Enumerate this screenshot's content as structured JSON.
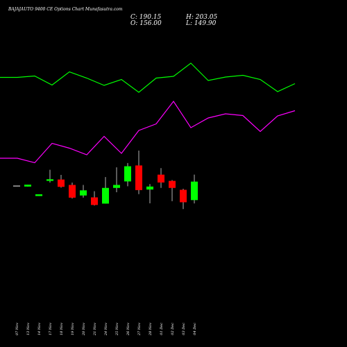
{
  "header": {
    "title": "BAJAJAUTO 9400  CE Options  Chart Munafasutra.com",
    "close": "C: 190.15",
    "open": "O: 156.00",
    "high": "H: 203.05",
    "low": "L: 149.90"
  },
  "chart_data": {
    "type": "candlestick",
    "title": "BAJAJAUTO 9400  CE Options  Chart Munafasutra.com",
    "dates": [
      "07 Nov",
      "13 Nov",
      "14 Nov",
      "17 Nov",
      "18 Nov",
      "19 Nov",
      "20 Nov",
      "21 Nov",
      "24 Nov",
      "25 Nov",
      "26 Nov",
      "27 Nov",
      "28 Nov",
      "01 Dec",
      "02 Dec",
      "03 Dec",
      "04 Dec"
    ],
    "candles": [
      {
        "open": 182.0,
        "high": 182.0,
        "low": 182.0,
        "close": 182.0,
        "color": "#ffffff"
      },
      {
        "open": 181.0,
        "high": 184.5,
        "low": 181.0,
        "close": 184.5,
        "color": "#00ff00"
      },
      {
        "open": 163.5,
        "high": 166.7,
        "low": 163.5,
        "close": 166.7,
        "color": "#00ff00"
      },
      {
        "open": 191.5,
        "high": 212.0,
        "low": 188.5,
        "close": 194.5,
        "color": "#00ff00"
      },
      {
        "open": 194.0,
        "high": 202.5,
        "low": 179.0,
        "close": 180.5,
        "color": "#ff0000"
      },
      {
        "open": 184.0,
        "high": 188.3,
        "low": 159.0,
        "close": 160.5,
        "color": "#ff0000"
      },
      {
        "open": 164.5,
        "high": 184.0,
        "low": 160.5,
        "close": 174.0,
        "color": "#00ff00"
      },
      {
        "open": 161.0,
        "high": 172.5,
        "low": 146.0,
        "close": 147.0,
        "color": "#ff0000"
      },
      {
        "open": 149.5,
        "high": 198.5,
        "low": 149.5,
        "close": 178.5,
        "color": "#00ff00"
      },
      {
        "open": 178.5,
        "high": 216.5,
        "low": 170.5,
        "close": 184.0,
        "color": "#00ff00"
      },
      {
        "open": 190.5,
        "high": 224.5,
        "low": 181.5,
        "close": 218.5,
        "color": "#00ff00"
      },
      {
        "open": 220.0,
        "high": 247.5,
        "low": 167.0,
        "close": 174.5,
        "color": "#ff0000"
      },
      {
        "open": 175.5,
        "high": 185.5,
        "low": 150.0,
        "close": 181.0,
        "color": "#00ff00"
      },
      {
        "open": 203.0,
        "high": 215.0,
        "low": 178.5,
        "close": 188.5,
        "color": "#ff0000"
      },
      {
        "open": 191.5,
        "high": 193.0,
        "low": 154.0,
        "close": 178.5,
        "color": "#ff0000"
      },
      {
        "open": 175.0,
        "high": 177.0,
        "low": 139.5,
        "close": 152.0,
        "color": "#ff0000"
      },
      {
        "open": 156.0,
        "high": 203.05,
        "low": 149.9,
        "close": 190.15,
        "color": "#00ff00"
      }
    ],
    "upper_line": {
      "color": "#00ff00",
      "values": [
        111.5,
        111.5,
        109.5,
        122.5,
        103.5,
        112.5,
        123.0,
        114.5,
        133.0,
        112.5,
        110.0,
        91.0,
        116.0,
        111.0,
        108.5,
        114.5,
        132.0,
        120.5
      ]
    },
    "lower_line": {
      "color": "#ff00ff",
      "values": [
        228.0,
        228.0,
        234.5,
        206.5,
        213.5,
        223.0,
        196.5,
        221.0,
        188.0,
        178.5,
        146.0,
        184.0,
        170.0,
        164.0,
        166.5,
        189.5,
        167.0,
        159.5
      ]
    },
    "colors": {
      "background": "#000000",
      "up": "#00ff00",
      "down": "#ff0000",
      "wick": "#b4b4b4"
    }
  }
}
